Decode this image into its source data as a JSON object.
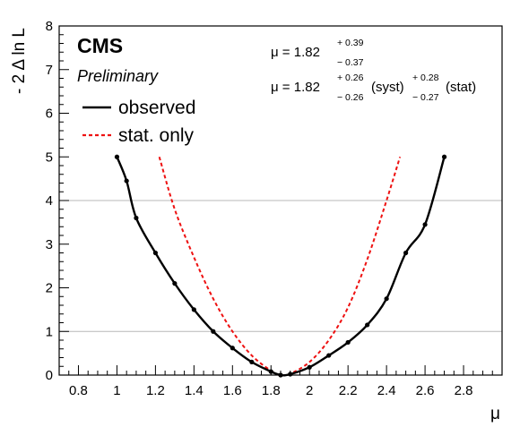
{
  "chart_data": {
    "type": "line",
    "title": "",
    "xlabel": "μ",
    "ylabel": "- 2 Δ ln L",
    "xlim": [
      0.7,
      3.0
    ],
    "ylim": [
      0,
      8
    ],
    "xticks": [
      "0.8",
      "1",
      "1.2",
      "1.4",
      "1.6",
      "1.8",
      "2",
      "2.2",
      "2.4",
      "2.6",
      "2.8"
    ],
    "yticks": [
      "0",
      "1",
      "2",
      "3",
      "4",
      "5",
      "6",
      "7",
      "8"
    ],
    "reference_lines": [
      1,
      4
    ],
    "grid": false,
    "legend_position": "top-left",
    "labels": {
      "experiment": "CMS",
      "status": "Preliminary"
    },
    "results": {
      "total": {
        "prefix": "μ = 1.82",
        "up": "+ 0.39",
        "down": "− 0.37"
      },
      "split": {
        "prefix": "μ = 1.82",
        "syst_up": "+ 0.26",
        "syst_down": "− 0.26",
        "syst_label": "(syst)",
        "stat_up": "+ 0.28",
        "stat_down": "− 0.27",
        "stat_label": "(stat)"
      }
    },
    "series": [
      {
        "name": "observed",
        "color": "#000000",
        "style": "solid",
        "markers": true,
        "x": [
          1.0,
          1.05,
          1.1,
          1.2,
          1.3,
          1.4,
          1.5,
          1.6,
          1.7,
          1.8,
          1.85,
          1.9,
          2.0,
          2.1,
          2.2,
          2.3,
          2.4,
          2.5,
          2.6,
          2.7
        ],
        "y": [
          5.0,
          4.45,
          3.6,
          2.8,
          2.1,
          1.5,
          1.0,
          0.62,
          0.3,
          0.08,
          0.0,
          0.02,
          0.18,
          0.45,
          0.75,
          1.15,
          1.75,
          2.8,
          3.45,
          5.0
        ]
      },
      {
        "name": "stat. only",
        "color": "#ee1111",
        "style": "dashed",
        "markers": false,
        "x": [
          1.22,
          1.3,
          1.4,
          1.5,
          1.6,
          1.7,
          1.8,
          1.85,
          1.9,
          2.0,
          2.1,
          2.2,
          2.3,
          2.4,
          2.47
        ],
        "y": [
          5.0,
          3.8,
          2.7,
          1.75,
          1.0,
          0.45,
          0.1,
          0.0,
          0.03,
          0.3,
          0.8,
          1.55,
          2.65,
          4.0,
          5.0
        ]
      }
    ]
  }
}
